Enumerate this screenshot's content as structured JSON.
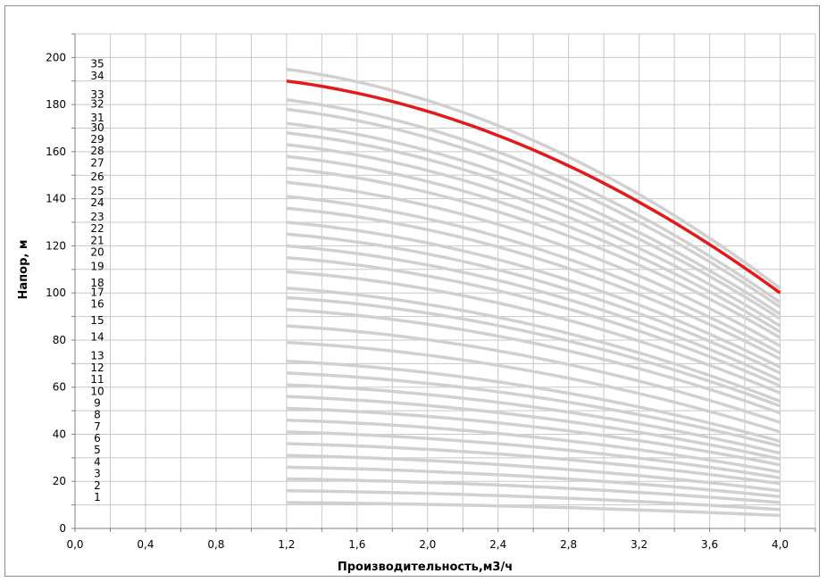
{
  "chart_data": {
    "type": "line",
    "xlabel": "Производительность,м3/ч",
    "ylabel": "Напор, м",
    "xlim": [
      0.0,
      4.2
    ],
    "ylim": [
      0,
      210
    ],
    "x_ticks": [
      "0,0",
      "0,4",
      "0,8",
      "1,2",
      "1,6",
      "2,0",
      "2,4",
      "2,8",
      "3,2",
      "3,6",
      "4,0"
    ],
    "y_ticks": [
      "0",
      "20",
      "40",
      "60",
      "80",
      "100",
      "120",
      "140",
      "160",
      "180",
      "200"
    ],
    "x_tick_values": [
      0.0,
      0.4,
      0.8,
      1.2,
      1.6,
      2.0,
      2.4,
      2.8,
      3.2,
      3.6,
      4.0
    ],
    "y_tick_values": [
      0,
      20,
      40,
      60,
      80,
      100,
      120,
      140,
      160,
      180,
      200
    ],
    "grid": true,
    "curve_x_range": [
      1.2,
      4.0
    ],
    "stage_numbers": [
      "1",
      "2",
      "3",
      "4",
      "5",
      "6",
      "7",
      "8",
      "9",
      "10",
      "11",
      "12",
      "13",
      "14",
      "15",
      "16",
      "17",
      "18",
      "19",
      "20",
      "21",
      "22",
      "23",
      "24",
      "25",
      "26",
      "27",
      "28",
      "29",
      "30",
      "31",
      "32",
      "33",
      "34",
      "35"
    ],
    "stage_head_at_x_start": [
      11,
      16,
      21,
      26,
      31,
      36,
      41,
      46,
      51,
      56,
      61,
      66,
      71,
      79,
      86,
      93,
      98,
      102,
      109,
      115,
      120,
      125,
      130,
      136,
      141,
      147,
      153,
      158,
      163,
      168,
      172,
      178,
      182,
      190,
      195
    ],
    "stage_head_at_x_end": [
      5.5,
      8,
      11,
      13.5,
      16,
      19,
      21.5,
      24,
      27,
      29.5,
      32,
      35,
      37,
      41,
      45,
      49,
      52,
      54,
      57.5,
      60.5,
      63,
      66,
      68.5,
      72,
      74.5,
      77.5,
      81,
      83.5,
      86,
      89,
      91,
      94,
      96,
      100,
      102
    ],
    "highlight_stage": "34",
    "highlight_color": "#e41a1a",
    "curve_color": "#d0d0d0",
    "grid_color": "#c8c8c8"
  }
}
